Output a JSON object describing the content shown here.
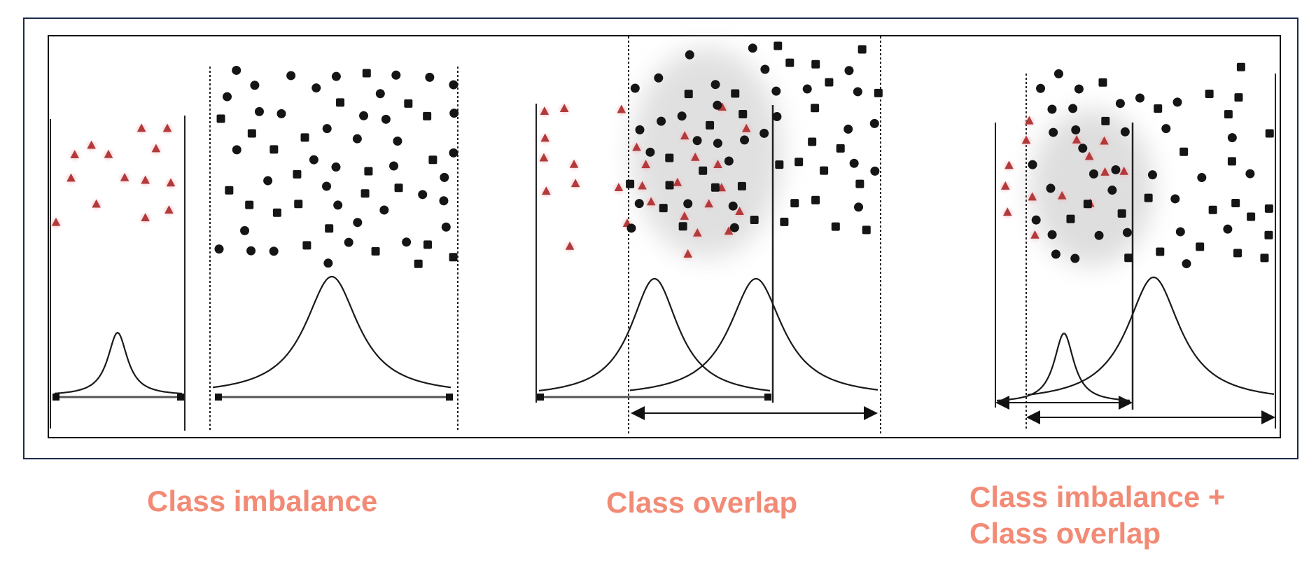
{
  "colors": {
    "caption": "#f28b76",
    "minority_class": "#b23a3a",
    "minority_halo": "#f4b6bd",
    "majority_class": "#151515",
    "overlap_region": "#d6d6d6",
    "frame_outer": "#1c2a4a",
    "frame_inner": "#111111"
  },
  "panels": [
    {
      "caption_line1": "Class imbalance",
      "caption_line2": "",
      "minority_share": "small",
      "overlap": false
    },
    {
      "caption_line1": "Class overlap",
      "caption_line2": "",
      "minority_share": "balanced",
      "overlap": true
    },
    {
      "caption_line1": "Class imbalance +",
      "caption_line2": "Class overlap",
      "minority_share": "small",
      "overlap": true
    }
  ],
  "icons": {
    "minority_marker": "red-triangle",
    "majority_marker": "black-circle-square",
    "range_arrow": "double-headed-arrow"
  }
}
